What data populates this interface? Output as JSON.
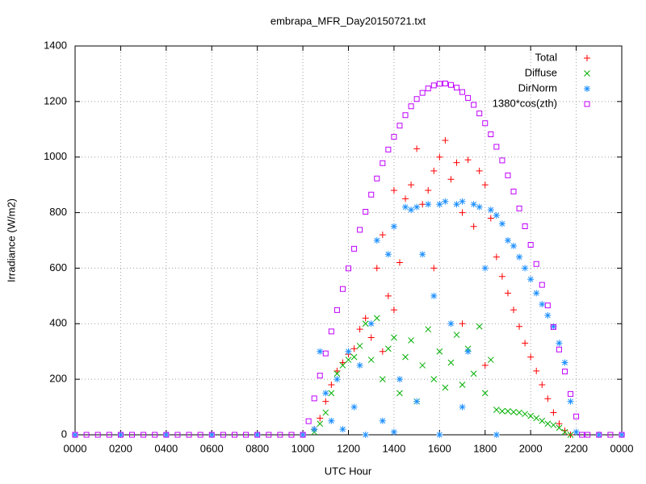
{
  "chart_data": {
    "type": "scatter",
    "title": "embrapa_MFR_Day20150721.txt",
    "xlabel": "UTC Hour",
    "ylabel": "Irradiance (W/m2)",
    "xlim": [
      0,
      24
    ],
    "ylim": [
      0,
      1400
    ],
    "xticks": [
      {
        "value": 0,
        "label": "0000"
      },
      {
        "value": 2,
        "label": "0200"
      },
      {
        "value": 4,
        "label": "0400"
      },
      {
        "value": 6,
        "label": "0600"
      },
      {
        "value": 8,
        "label": "0800"
      },
      {
        "value": 10,
        "label": "1000"
      },
      {
        "value": 12,
        "label": "1200"
      },
      {
        "value": 14,
        "label": "1400"
      },
      {
        "value": 16,
        "label": "1600"
      },
      {
        "value": 18,
        "label": "1800"
      },
      {
        "value": 20,
        "label": "2000"
      },
      {
        "value": 22,
        "label": "2200"
      },
      {
        "value": 24,
        "label": "0000"
      }
    ],
    "yticks": [
      0,
      200,
      400,
      600,
      800,
      1000,
      1200,
      1400
    ],
    "grid": true,
    "legend": "top-right",
    "series": [
      {
        "name": "Total",
        "color": "#ff0000",
        "marker": "plus",
        "x": [
          10.5,
          10.75,
          11,
          11.25,
          11.5,
          11.75,
          12,
          12.25,
          12.5,
          12.75,
          13,
          13.25,
          13.5,
          13.5,
          13.75,
          14,
          14,
          14.25,
          14.5,
          14.75,
          15,
          15.25,
          15.5,
          15.75,
          15.75,
          16,
          16.25,
          16.5,
          16.75,
          17,
          17,
          17.25,
          17.5,
          17.75,
          18,
          18,
          18.25,
          18.5,
          18.75,
          19,
          19.25,
          19.5,
          19.75,
          20,
          20.25,
          20.5,
          20.75,
          21,
          21.25,
          21.5,
          21.75
        ],
        "values": [
          20,
          60,
          120,
          180,
          230,
          260,
          290,
          310,
          380,
          420,
          350,
          600,
          720,
          300,
          500,
          880,
          450,
          620,
          850,
          900,
          1030,
          830,
          880,
          950,
          600,
          1000,
          1060,
          920,
          980,
          800,
          400,
          990,
          750,
          950,
          900,
          250,
          780,
          640,
          570,
          510,
          450,
          390,
          330,
          280,
          230,
          180,
          130,
          80,
          40,
          15,
          0
        ]
      },
      {
        "name": "Diffuse",
        "color": "#00b000",
        "marker": "cross",
        "x": [
          10.5,
          10.75,
          11,
          11.25,
          11.5,
          11.75,
          12,
          12.25,
          12.5,
          12.75,
          13,
          13.25,
          13.5,
          13.75,
          14,
          14.25,
          14.5,
          14.75,
          15,
          15.25,
          15.5,
          15.75,
          16,
          16.25,
          16.5,
          16.75,
          17,
          17.25,
          17.5,
          17.75,
          18,
          18.25,
          18.5,
          18.75,
          19,
          19.25,
          19.5,
          19.75,
          20,
          20.25,
          20.5,
          20.75,
          21,
          21.25,
          21.5,
          21.75
        ],
        "values": [
          10,
          40,
          80,
          150,
          220,
          250,
          270,
          280,
          320,
          400,
          270,
          420,
          200,
          310,
          350,
          150,
          280,
          340,
          120,
          250,
          380,
          200,
          300,
          170,
          260,
          360,
          180,
          310,
          220,
          390,
          150,
          270,
          90,
          85,
          85,
          82,
          80,
          75,
          68,
          60,
          50,
          40,
          35,
          25,
          10,
          0
        ]
      },
      {
        "name": "DirNorm",
        "color": "#1e90ff",
        "marker": "star",
        "x": [
          0,
          2,
          4,
          6,
          8,
          10,
          10.5,
          10.75,
          11,
          11.25,
          11.5,
          11.75,
          12,
          12.25,
          12.5,
          12.75,
          13,
          13.25,
          13.5,
          13.75,
          14,
          14,
          14.25,
          14.5,
          14.75,
          15,
          15,
          15.25,
          15.5,
          15.75,
          16,
          16,
          16.25,
          16.5,
          16.75,
          17,
          17,
          17.25,
          17.5,
          17.75,
          18,
          18.25,
          18.5,
          18.5,
          18.75,
          19,
          19.25,
          19.5,
          19.75,
          20,
          20.25,
          20.5,
          20.75,
          21,
          21.25,
          21.5,
          21.75,
          22,
          23,
          24
        ],
        "values": [
          0,
          0,
          0,
          0,
          0,
          0,
          20,
          300,
          150,
          50,
          200,
          20,
          300,
          100,
          250,
          0,
          400,
          700,
          50,
          650,
          750,
          10,
          200,
          820,
          810,
          820,
          120,
          650,
          830,
          500,
          830,
          0,
          840,
          400,
          830,
          840,
          100,
          300,
          830,
          820,
          600,
          810,
          790,
          0,
          760,
          700,
          680,
          640,
          600,
          560,
          510,
          470,
          430,
          390,
          330,
          260,
          120,
          10,
          0,
          0
        ]
      },
      {
        "name": "1380*cos(zth)",
        "color": "#c000ff",
        "marker": "square",
        "x": [
          0,
          0.5,
          1,
          1.5,
          2,
          2.5,
          3,
          3.5,
          4,
          4.5,
          5,
          5.5,
          6,
          6.5,
          7,
          7.5,
          8,
          8.5,
          9,
          9.5,
          10,
          10.25,
          10.5,
          10.75,
          11,
          11.25,
          11.5,
          11.75,
          12,
          12.25,
          12.5,
          12.75,
          13,
          13.25,
          13.5,
          13.75,
          14,
          14.25,
          14.5,
          14.75,
          15,
          15.25,
          15.5,
          15.75,
          16,
          16.25,
          16.5,
          16.75,
          17,
          17.25,
          17.5,
          17.75,
          18,
          18.25,
          18.5,
          18.75,
          19,
          19.25,
          19.5,
          19.75,
          20,
          20.25,
          20.5,
          20.75,
          21,
          21.25,
          21.5,
          21.75,
          22,
          22.25,
          22.5,
          23,
          23.5,
          24
        ],
        "values": [
          0,
          0,
          0,
          0,
          0,
          0,
          0,
          0,
          0,
          0,
          0,
          0,
          0,
          0,
          0,
          0,
          0,
          0,
          0,
          0,
          0,
          49,
          131,
          213,
          293,
          372,
          449,
          525,
          599,
          670,
          738,
          803,
          865,
          923,
          978,
          1027,
          1073,
          1113,
          1151,
          1183,
          1209,
          1231,
          1247,
          1258,
          1264,
          1265,
          1260,
          1250,
          1234,
          1213,
          1188,
          1157,
          1122,
          1082,
          1037,
          988,
          934,
          876,
          815,
          751,
          684,
          615,
          540,
          466,
          388,
          307,
          228,
          147,
          66,
          0,
          0,
          0,
          0,
          0
        ]
      }
    ]
  }
}
